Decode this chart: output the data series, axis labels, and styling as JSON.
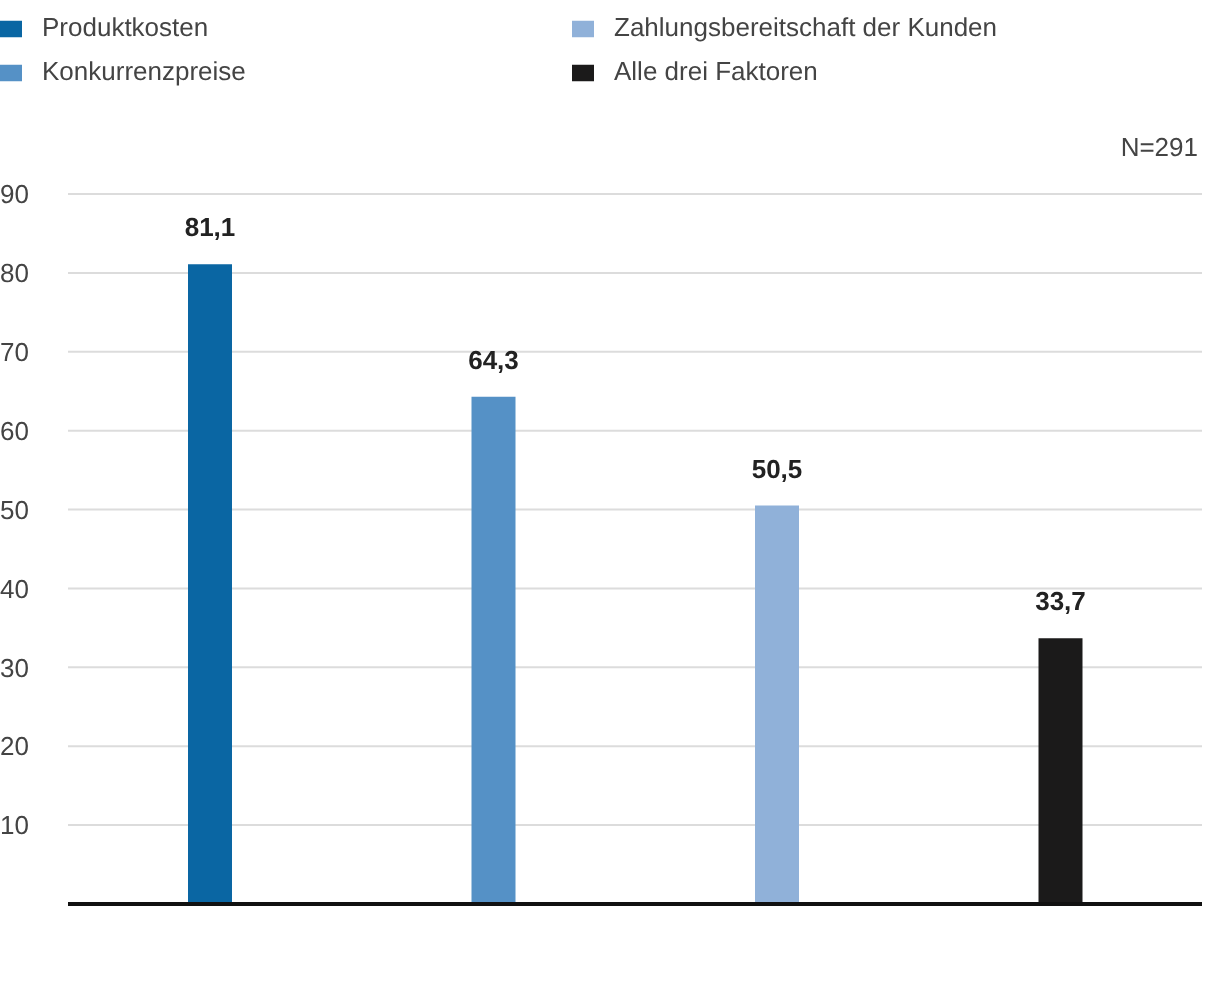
{
  "chart_data": {
    "type": "bar",
    "stacked": true,
    "categories": [
      null,
      null,
      null,
      null
    ],
    "series": [
      {
        "name": "Produktkosten",
        "color": "#0a66a3",
        "values": [
          81.1,
          null,
          null,
          null
        ],
        "value_labels": [
          "81,1",
          null,
          null,
          null
        ]
      },
      {
        "name": "Konkurrenzpreise",
        "color": "#5591c6",
        "values": [
          null,
          64.3,
          null,
          null
        ],
        "value_labels": [
          null,
          "64,3",
          null,
          null
        ]
      },
      {
        "name": "Zahlungsbereitschaft der Kunden",
        "color": "#90b1d9",
        "values": [
          null,
          null,
          50.5,
          null
        ],
        "value_labels": [
          null,
          null,
          "50,5",
          null
        ]
      },
      {
        "name": "Alle drei Faktoren",
        "color": "#1b1a1a",
        "values": [
          null,
          null,
          null,
          33.7
        ],
        "value_labels": [
          null,
          null,
          null,
          "33,7"
        ]
      }
    ],
    "ylim": [
      0,
      90
    ],
    "yticks": [
      {
        "value": 0,
        "label": null
      },
      10,
      20,
      30,
      40,
      50,
      60,
      70,
      80,
      90
    ],
    "grid": "y",
    "legend": "top",
    "annotations": [
      "N=291"
    ]
  }
}
